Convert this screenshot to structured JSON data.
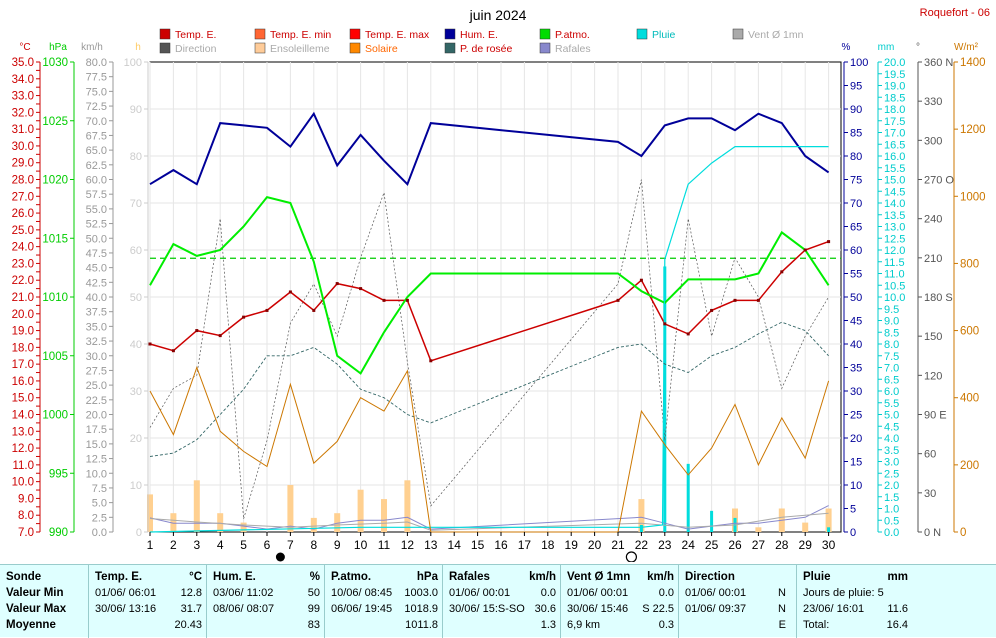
{
  "title": "juin 2024",
  "station": "Roquefort - 06",
  "legend": [
    {
      "label": "Temp. E.",
      "color": "#cc0000",
      "muted": false
    },
    {
      "label": "Temp. E. min",
      "color": "#ff6633",
      "muted": false
    },
    {
      "label": "Temp. E. max",
      "color": "#ff0000",
      "muted": false
    },
    {
      "label": "Hum. E.",
      "color": "#000099",
      "muted": false
    },
    {
      "label": "P.atmo.",
      "color": "#00dd00",
      "muted": false
    },
    {
      "label": "Pluie",
      "color": "#00dddd",
      "muted": false
    },
    {
      "label": "Vent Ø 1mn",
      "color": "#aaaaaa",
      "muted": true
    },
    {
      "label": "Direction",
      "color": "#555555",
      "muted": true
    },
    {
      "label": "Ensoleilleme",
      "color": "#ffcc99",
      "muted": true
    },
    {
      "label": "Solaire",
      "color": "#ff8800",
      "muted": false
    },
    {
      "label": "P. de rosée",
      "color": "#336666",
      "muted": false
    },
    {
      "label": "Rafales",
      "color": "#8888cc",
      "muted": true
    }
  ],
  "axis_units": {
    "temp": "°C",
    "pressure": "hPa",
    "wind": "km/h",
    "sun": "h",
    "hum": "%",
    "rain": "mm",
    "dir": "°",
    "solar": "W/m²"
  },
  "chart_data": {
    "type": "line",
    "x": [
      1,
      2,
      3,
      4,
      5,
      6,
      7,
      8,
      9,
      10,
      11,
      12,
      13,
      14,
      15,
      16,
      17,
      18,
      19,
      20,
      21,
      22,
      23,
      24,
      25,
      26,
      27,
      28,
      29,
      30
    ],
    "axes": {
      "temp": {
        "range": [
          7,
          35
        ],
        "step": 0.5,
        "label_every": 1,
        "color": "#cc0000"
      },
      "pressure": {
        "range": [
          990,
          1030
        ],
        "ticks": [
          990,
          995,
          1000,
          1005,
          1010,
          1015,
          1020,
          1025,
          1030
        ],
        "color": "#00cc00"
      },
      "wind": {
        "range": [
          0,
          80
        ],
        "step": 2.5,
        "color": "#999999"
      },
      "sun": {
        "range": [
          0,
          100
        ],
        "step": 10,
        "color": "#cccccc"
      },
      "hum": {
        "range": [
          0,
          100
        ],
        "step": 5,
        "color": "#000099"
      },
      "rain": {
        "range": [
          0,
          20
        ],
        "step": 0.5,
        "color": "#00cccc"
      },
      "dir": {
        "ticks": [
          [
            0,
            "0 N"
          ],
          [
            30,
            "30"
          ],
          [
            60,
            "60"
          ],
          [
            90,
            "90 E"
          ],
          [
            120,
            "120"
          ],
          [
            150,
            "150"
          ],
          [
            180,
            "180 S"
          ],
          [
            210,
            "210"
          ],
          [
            240,
            "240"
          ],
          [
            270,
            "270 O"
          ],
          [
            300,
            "300"
          ],
          [
            330,
            "330"
          ],
          [
            360,
            "360 N"
          ]
        ],
        "color": "#555555"
      },
      "solar": {
        "range": [
          0,
          1400
        ],
        "ticks": [
          0,
          200,
          400,
          600,
          800,
          1000,
          1200,
          1400
        ],
        "color": "#cc7700"
      }
    },
    "series": [
      {
        "name": "Temp. E.",
        "axis": "temp",
        "color": "#cc0000",
        "width": 1.5,
        "style": "solid",
        "x": [
          1,
          2,
          3,
          4,
          5,
          6,
          7,
          8,
          9,
          10,
          11,
          12,
          13,
          21,
          22,
          23,
          24,
          25,
          26,
          27,
          28,
          29,
          30
        ],
        "values": [
          18.2,
          17.8,
          19.0,
          18.7,
          19.8,
          20.2,
          21.3,
          20.2,
          21.8,
          21.5,
          20.8,
          20.8,
          17.2,
          20.8,
          22.0,
          19.4,
          18.8,
          20.2,
          20.8,
          20.8,
          22.5,
          23.8,
          24.3
        ]
      },
      {
        "name": "Hum. E.",
        "axis": "hum",
        "color": "#000099",
        "width": 2,
        "style": "solid",
        "x": [
          1,
          2,
          3,
          4,
          5,
          6,
          7,
          8,
          9,
          10,
          11,
          12,
          13,
          21,
          22,
          23,
          24,
          25,
          26,
          27,
          28,
          29,
          30
        ],
        "values": [
          74,
          77,
          74,
          87,
          86.5,
          86,
          82,
          89,
          78,
          84.5,
          79,
          74,
          87,
          83,
          80,
          86.5,
          88,
          88,
          85.5,
          89,
          87,
          80,
          76.5
        ]
      },
      {
        "name": "P.atmo.",
        "axis": "pressure",
        "color": "#00ee00",
        "width": 2,
        "style": "solid",
        "x": [
          1,
          2,
          3,
          4,
          5,
          6,
          7,
          8,
          9,
          10,
          11,
          12,
          13,
          21,
          22,
          23,
          24,
          25,
          26,
          27,
          28,
          29,
          30
        ],
        "values": [
          1011.0,
          1014.5,
          1013.5,
          1014.0,
          1016.0,
          1018.5,
          1018.0,
          1013.0,
          1005.0,
          1003.5,
          1007.0,
          1010.0,
          1012.0,
          1012.0,
          1010.5,
          1009.5,
          1011.5,
          1011.5,
          1011.5,
          1012.0,
          1015.5,
          1014.0,
          1011.0
        ]
      },
      {
        "name": "Pluie",
        "axis": "rain",
        "color": "#00dddd",
        "width": 1.2,
        "style": "solid",
        "x": [
          1,
          10,
          12,
          13,
          22,
          22.9,
          23,
          24,
          25,
          26,
          27,
          28,
          29,
          30
        ],
        "values": [
          0.0,
          0.2,
          0.2,
          0.2,
          0.2,
          0.3,
          11.6,
          14.8,
          15.7,
          16.4,
          16.4,
          16.4,
          16.4,
          16.4
        ]
      },
      {
        "name": "P. de rosée",
        "axis": "temp",
        "color": "#336666",
        "width": 0.9,
        "style": "dashed",
        "x": [
          1,
          2,
          3,
          4,
          5,
          6,
          7,
          8,
          9,
          10,
          11,
          12,
          13,
          21,
          22,
          23,
          24,
          25,
          26,
          27,
          28,
          29,
          30
        ],
        "values": [
          11.5,
          11.7,
          12.5,
          14.0,
          15.5,
          17.5,
          17.5,
          18.0,
          17.0,
          15.5,
          15.0,
          14.0,
          13.5,
          18.0,
          18.2,
          17.0,
          16.5,
          17.5,
          18.0,
          18.8,
          19.5,
          19.0,
          17.5
        ]
      },
      {
        "name": "Solaire",
        "axis": "solar",
        "color": "#cc7700",
        "width": 1,
        "style": "solid",
        "x": [
          1,
          2,
          3,
          4,
          5,
          6,
          7,
          8,
          9,
          10,
          11,
          12,
          13,
          21,
          22,
          23,
          24,
          25,
          26,
          27,
          28,
          29,
          30
        ],
        "values": [
          420,
          290,
          490,
          300,
          240,
          195,
          440,
          205,
          270,
          400,
          360,
          480,
          0,
          0,
          360,
          260,
          170,
          250,
          380,
          200,
          340,
          220,
          450
        ]
      }
    ],
    "sunshine_bars": {
      "axis": "sun",
      "color": "#ffd090",
      "x": [
        1,
        2,
        3,
        4,
        5,
        6,
        7,
        8,
        9,
        10,
        11,
        12,
        22,
        23,
        24,
        25,
        26,
        27,
        28,
        29,
        30
      ],
      "values": [
        8,
        4,
        11,
        4,
        2,
        0,
        10,
        3,
        4,
        9,
        7,
        11,
        7,
        0,
        0,
        0,
        5,
        1,
        5,
        2,
        5
      ]
    },
    "rain_bars": {
      "axis": "rain",
      "color": "#00dddd",
      "x": [
        22,
        23,
        24,
        25,
        26,
        30
      ],
      "values": [
        0.3,
        11.3,
        2.9,
        0.9,
        0.6,
        0.2
      ]
    },
    "wind_line": {
      "axis": "wind",
      "color": "#aaaaaa",
      "x": [
        1,
        3,
        5,
        7,
        9,
        11,
        12,
        13,
        22,
        24,
        26,
        28,
        30
      ],
      "values": [
        2.3,
        1.7,
        1.2,
        0.8,
        1.2,
        1.5,
        1.7,
        0.3,
        1.5,
        0.8,
        1.2,
        2.5,
        3.2
      ]
    },
    "gust_line": {
      "axis": "wind",
      "color": "#8888cc",
      "x": [
        1,
        2,
        3,
        4,
        5,
        6,
        7,
        8,
        9,
        10,
        11,
        12,
        13,
        22,
        23,
        24,
        25,
        26,
        27,
        28,
        29,
        30
      ],
      "values": [
        2.4,
        1.5,
        1.5,
        1.5,
        1.0,
        0.5,
        1.0,
        0.5,
        1.5,
        2.0,
        2.0,
        2.5,
        0.5,
        2.5,
        1.5,
        0.5,
        1.0,
        1.5,
        1.5,
        2.0,
        2.5,
        4.5
      ]
    },
    "direction_line": {
      "axis": "dir",
      "color": "#555555",
      "x": [
        1,
        2,
        3,
        4,
        5,
        6,
        7,
        8,
        9,
        10,
        11,
        12,
        13,
        21,
        22,
        23,
        24,
        25,
        26,
        27,
        28,
        29,
        30
      ],
      "values": [
        80,
        110,
        120,
        240,
        10,
        70,
        160,
        190,
        150,
        210,
        260,
        130,
        20,
        190,
        270,
        70,
        240,
        150,
        210,
        180,
        110,
        150,
        180
      ]
    },
    "mean_pressure_line": {
      "axis": "pressure",
      "value": 1013.3,
      "color": "#00cc00"
    },
    "moon": [
      {
        "day": 7,
        "phase": "new"
      },
      {
        "day": 22,
        "phase": "full"
      }
    ]
  },
  "stats": {
    "sonde": {
      "header": "Sonde",
      "rows": [
        "Valeur Min",
        "Valeur Max",
        "Moyenne"
      ]
    },
    "temp": {
      "header": "Temp. E.",
      "unit": "°C",
      "rows": [
        [
          "01/06/ 06:01",
          "12.8"
        ],
        [
          "30/06/ 13:16",
          "31.7"
        ],
        [
          "",
          "20.43"
        ]
      ]
    },
    "hum": {
      "header": "Hum. E.",
      "unit": "%",
      "rows": [
        [
          "03/06/ 11:02",
          "50"
        ],
        [
          "08/06/ 08:07",
          "99"
        ],
        [
          "",
          "83"
        ]
      ]
    },
    "patmo": {
      "header": "P.atmo.",
      "unit": "hPa",
      "rows": [
        [
          "10/06/ 08:45",
          "1003.0"
        ],
        [
          "06/06/ 19:45",
          "1018.9"
        ],
        [
          "",
          "1011.8"
        ]
      ]
    },
    "rafales": {
      "header": "Rafales",
      "unit": "km/h",
      "rows": [
        [
          "01/06/ 00:01",
          "0.0"
        ],
        [
          "30/06/ 15:S-SO",
          "30.6"
        ],
        [
          "",
          "1.3"
        ]
      ]
    },
    "vent": {
      "header": "Vent Ø 1mn",
      "unit": "km/h",
      "rows": [
        [
          "01/06/ 00:01",
          "0.0"
        ],
        [
          "30/06/ 15:46",
          "S 22.5"
        ],
        [
          "6,9 km",
          "0.3"
        ]
      ]
    },
    "direction": {
      "header": "Direction",
      "rows": [
        [
          "01/06/ 00:01",
          "N"
        ],
        [
          "01/06/ 09:37",
          "N"
        ],
        [
          "",
          "E"
        ]
      ]
    },
    "pluie": {
      "header": "Pluie",
      "unit": "mm",
      "rows": [
        [
          "Jours de pluie: 5",
          ""
        ],
        [
          "23/06/ 16:01",
          "11.6"
        ],
        [
          "Total:",
          "16.4"
        ]
      ]
    }
  }
}
